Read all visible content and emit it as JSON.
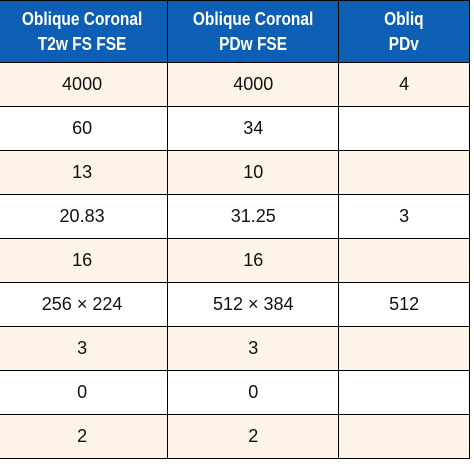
{
  "headers": [
    {
      "line1": "Oblique Coronal",
      "line2": "T2w FS FSE"
    },
    {
      "line1": "Oblique Coronal",
      "line2": "PDw FSE"
    },
    {
      "line1": "Obliq",
      "line2": "PDv"
    }
  ],
  "rows": [
    [
      "4000",
      "4000",
      "4"
    ],
    [
      "60",
      "34",
      ""
    ],
    [
      "13",
      "10",
      ""
    ],
    [
      "20.83",
      "31.25",
      "3"
    ],
    [
      "16",
      "16",
      ""
    ],
    [
      "256 × 224",
      "512 × 384",
      "512"
    ],
    [
      "3",
      "3",
      ""
    ],
    [
      "0",
      "0",
      ""
    ],
    [
      "2",
      "2",
      ""
    ]
  ],
  "colors": {
    "header_background": "#0d5fb5",
    "header_text": "#ffffff",
    "row_tint": "#fdf3e6",
    "row_plain": "#ffffff"
  }
}
